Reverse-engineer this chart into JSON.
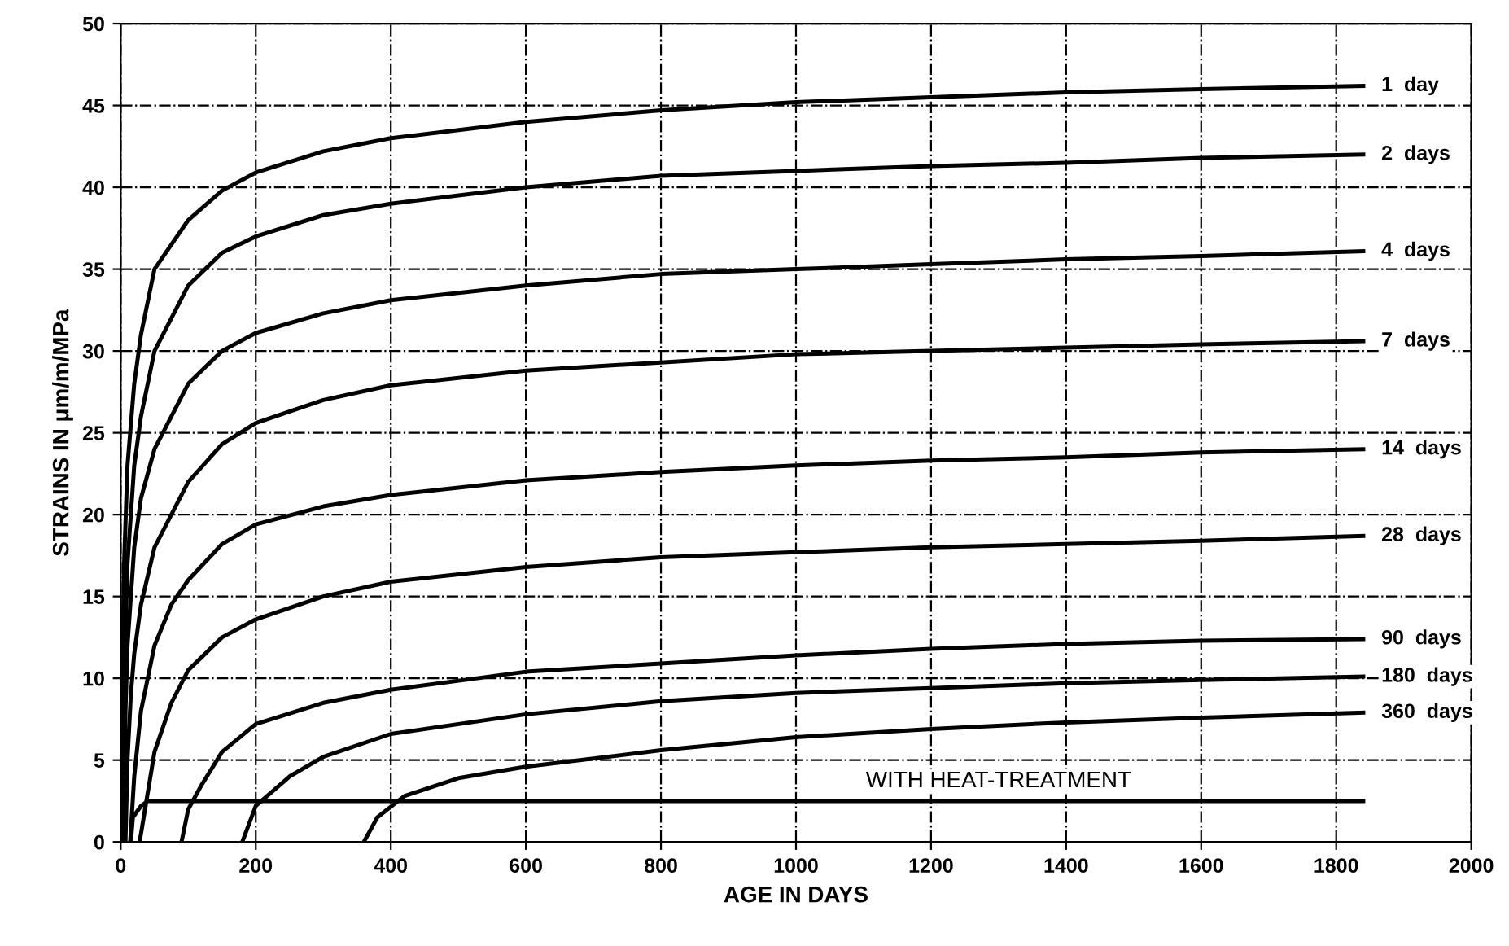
{
  "chart_data": {
    "type": "line",
    "xlabel": "AGE IN DAYS",
    "ylabel": "STRAINS IN μm/m/MPa",
    "xlim": [
      0,
      2000
    ],
    "ylim": [
      0,
      50
    ],
    "xticks": [
      0,
      200,
      400,
      600,
      800,
      1000,
      1200,
      1400,
      1600,
      1800,
      2000
    ],
    "yticks": [
      0,
      5,
      10,
      15,
      20,
      25,
      30,
      35,
      40,
      45,
      50
    ],
    "grid": true,
    "legend": false,
    "marker": "none",
    "line_style": "solid",
    "annotations": [
      {
        "text": "WITH HEAT-TREATMENT",
        "x": 1300,
        "y": 2.5
      }
    ],
    "series": [
      {
        "name": "1  day",
        "color": "#000000",
        "x": [
          1,
          3,
          5,
          10,
          20,
          30,
          50,
          100,
          150,
          200,
          300,
          400,
          600,
          800,
          1000,
          1200,
          1400,
          1600,
          1840
        ],
        "values": [
          0,
          12,
          17,
          23,
          28,
          31,
          35,
          38,
          39.8,
          40.9,
          42.2,
          43,
          44,
          44.7,
          45.2,
          45.5,
          45.8,
          46,
          46.2
        ]
      },
      {
        "name": "2  days",
        "color": "#000000",
        "x": [
          2,
          5,
          10,
          20,
          30,
          50,
          100,
          150,
          200,
          300,
          400,
          600,
          800,
          1000,
          1200,
          1400,
          1600,
          1840
        ],
        "values": [
          0,
          10,
          17,
          23,
          26,
          30,
          34,
          36,
          37,
          38.3,
          39,
          40,
          40.7,
          41,
          41.3,
          41.5,
          41.8,
          42
        ]
      },
      {
        "name": "4  days",
        "color": "#000000",
        "x": [
          4,
          7,
          10,
          20,
          30,
          50,
          100,
          150,
          200,
          300,
          400,
          600,
          800,
          1000,
          1200,
          1400,
          1600,
          1840
        ],
        "values": [
          0,
          8,
          12,
          18,
          21,
          24,
          28,
          30,
          31.1,
          32.3,
          33.1,
          34,
          34.7,
          35,
          35.3,
          35.6,
          35.8,
          36.1
        ]
      },
      {
        "name": "7  days",
        "color": "#000000",
        "x": [
          7,
          10,
          15,
          20,
          30,
          50,
          100,
          150,
          200,
          300,
          400,
          600,
          800,
          1000,
          1200,
          1400,
          1600,
          1840
        ],
        "values": [
          0,
          5,
          9,
          11.5,
          14.5,
          18,
          22,
          24.3,
          25.6,
          27,
          27.9,
          28.8,
          29.3,
          29.8,
          30,
          30.2,
          30.4,
          30.6
        ]
      },
      {
        "name": "14  days",
        "color": "#000000",
        "x": [
          14,
          20,
          30,
          50,
          75,
          100,
          150,
          200,
          300,
          400,
          600,
          800,
          1000,
          1200,
          1400,
          1600,
          1840
        ],
        "values": [
          0,
          4,
          8,
          12,
          14.5,
          16,
          18.2,
          19.4,
          20.5,
          21.2,
          22.1,
          22.6,
          23,
          23.3,
          23.5,
          23.8,
          24
        ]
      },
      {
        "name": "28  days",
        "color": "#000000",
        "x": [
          28,
          40,
          50,
          75,
          100,
          150,
          200,
          300,
          400,
          600,
          800,
          1000,
          1200,
          1400,
          1600,
          1840
        ],
        "values": [
          0,
          3,
          5.5,
          8.5,
          10.5,
          12.5,
          13.6,
          15,
          15.9,
          16.8,
          17.4,
          17.7,
          18,
          18.2,
          18.4,
          18.7
        ]
      },
      {
        "name": "90  days",
        "color": "#000000",
        "x": [
          90,
          100,
          120,
          150,
          200,
          300,
          400,
          600,
          800,
          1000,
          1200,
          1400,
          1600,
          1840
        ],
        "values": [
          0,
          2,
          3.5,
          5.5,
          7.2,
          8.5,
          9.3,
          10.4,
          10.9,
          11.4,
          11.8,
          12.1,
          12.3,
          12.4
        ]
      },
      {
        "name": "180  days",
        "color": "#000000",
        "x": [
          180,
          200,
          250,
          300,
          400,
          600,
          800,
          1000,
          1200,
          1400,
          1600,
          1840
        ],
        "values": [
          0,
          2.2,
          4,
          5.2,
          6.6,
          7.8,
          8.6,
          9.1,
          9.4,
          9.7,
          9.9,
          10.1
        ]
      },
      {
        "name": "360  days",
        "color": "#000000",
        "x": [
          360,
          380,
          420,
          500,
          600,
          800,
          1000,
          1200,
          1400,
          1600,
          1840
        ],
        "values": [
          0,
          1.5,
          2.8,
          3.9,
          4.6,
          5.6,
          6.4,
          6.9,
          7.3,
          7.6,
          7.9
        ]
      },
      {
        "color": "#000000",
        "x": [
          15,
          18,
          30,
          40,
          1840
        ],
        "values": [
          0,
          1.5,
          2.2,
          2.5,
          2.5
        ]
      }
    ]
  }
}
